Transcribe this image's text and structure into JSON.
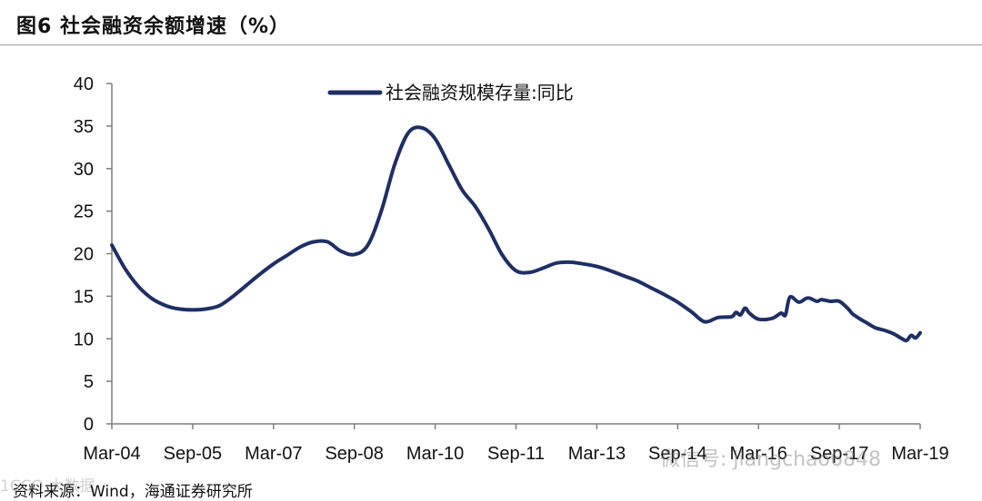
{
  "header": {
    "title": "图6  社会融资余额增速（%）"
  },
  "source": {
    "text": "资料来源：Wind，海通证券研究所"
  },
  "watermarks": {
    "right": "微信号: jiangchao6848",
    "left": "1CCO 大数据"
  },
  "colors": {
    "series": "#1F2F63",
    "axis": "#7f7f7f",
    "text": "#111111"
  },
  "chart_data": {
    "type": "line",
    "title": "",
    "xlabel": "",
    "ylabel": "",
    "ylim": [
      0,
      40
    ],
    "yticks": [
      0,
      5,
      10,
      15,
      20,
      25,
      30,
      35,
      40
    ],
    "grid": false,
    "legend_position": "top-center",
    "x_tick_labels": [
      "Mar-04",
      "Sep-05",
      "Mar-07",
      "Sep-08",
      "Mar-10",
      "Sep-11",
      "Mar-13",
      "Sep-14",
      "Mar-16",
      "Sep-17",
      "Mar-19"
    ],
    "series": [
      {
        "name": "社会融资规模存量:同比",
        "points": [
          [
            "2004-03",
            21.0
          ],
          [
            "2004-06",
            18.2
          ],
          [
            "2004-09",
            16.1
          ],
          [
            "2004-12",
            14.7
          ],
          [
            "2005-03",
            13.9
          ],
          [
            "2005-06",
            13.5
          ],
          [
            "2005-09",
            13.4
          ],
          [
            "2005-12",
            13.5
          ],
          [
            "2006-03",
            13.9
          ],
          [
            "2006-06",
            15.0
          ],
          [
            "2006-09",
            16.3
          ],
          [
            "2006-12",
            17.6
          ],
          [
            "2007-03",
            18.8
          ],
          [
            "2007-06",
            19.8
          ],
          [
            "2007-09",
            20.8
          ],
          [
            "2007-12",
            21.4
          ],
          [
            "2008-03",
            21.4
          ],
          [
            "2008-06",
            20.3
          ],
          [
            "2008-09",
            19.9
          ],
          [
            "2008-12",
            21.0
          ],
          [
            "2009-03",
            25.0
          ],
          [
            "2009-06",
            30.5
          ],
          [
            "2009-09",
            34.2
          ],
          [
            "2009-12",
            34.8
          ],
          [
            "2010-03",
            33.5
          ],
          [
            "2010-06",
            30.5
          ],
          [
            "2010-09",
            27.5
          ],
          [
            "2010-12",
            25.5
          ],
          [
            "2011-03",
            22.8
          ],
          [
            "2011-06",
            19.8
          ],
          [
            "2011-09",
            18.0
          ],
          [
            "2011-12",
            17.8
          ],
          [
            "2012-03",
            18.3
          ],
          [
            "2012-06",
            18.9
          ],
          [
            "2012-09",
            19.0
          ],
          [
            "2012-12",
            18.8
          ],
          [
            "2013-03",
            18.5
          ],
          [
            "2013-06",
            18.0
          ],
          [
            "2013-09",
            17.4
          ],
          [
            "2013-12",
            16.8
          ],
          [
            "2014-03",
            16.0
          ],
          [
            "2014-06",
            15.2
          ],
          [
            "2014-09",
            14.3
          ],
          [
            "2014-12",
            13.2
          ],
          [
            "2015-03",
            12.0
          ],
          [
            "2015-06",
            12.5
          ],
          [
            "2015-09",
            12.6
          ],
          [
            "2015-10",
            13.1
          ],
          [
            "2015-11",
            12.8
          ],
          [
            "2015-12",
            13.6
          ],
          [
            "2016-01",
            13.0
          ],
          [
            "2016-03",
            12.3
          ],
          [
            "2016-06",
            12.4
          ],
          [
            "2016-08",
            13.0
          ],
          [
            "2016-09",
            12.8
          ],
          [
            "2016-10",
            14.9
          ],
          [
            "2016-12",
            14.3
          ],
          [
            "2017-02",
            14.8
          ],
          [
            "2017-04",
            14.4
          ],
          [
            "2017-05",
            14.6
          ],
          [
            "2017-07",
            14.4
          ],
          [
            "2017-09",
            14.4
          ],
          [
            "2017-11",
            13.5
          ],
          [
            "2017-12",
            12.9
          ],
          [
            "2018-02",
            12.2
          ],
          [
            "2018-03",
            11.9
          ],
          [
            "2018-05",
            11.3
          ],
          [
            "2018-07",
            11.0
          ],
          [
            "2018-09",
            10.6
          ],
          [
            "2018-11",
            10.0
          ],
          [
            "2018-12",
            9.8
          ],
          [
            "2019-01",
            10.4
          ],
          [
            "2019-02",
            10.1
          ],
          [
            "2019-03",
            10.7
          ]
        ]
      }
    ]
  }
}
